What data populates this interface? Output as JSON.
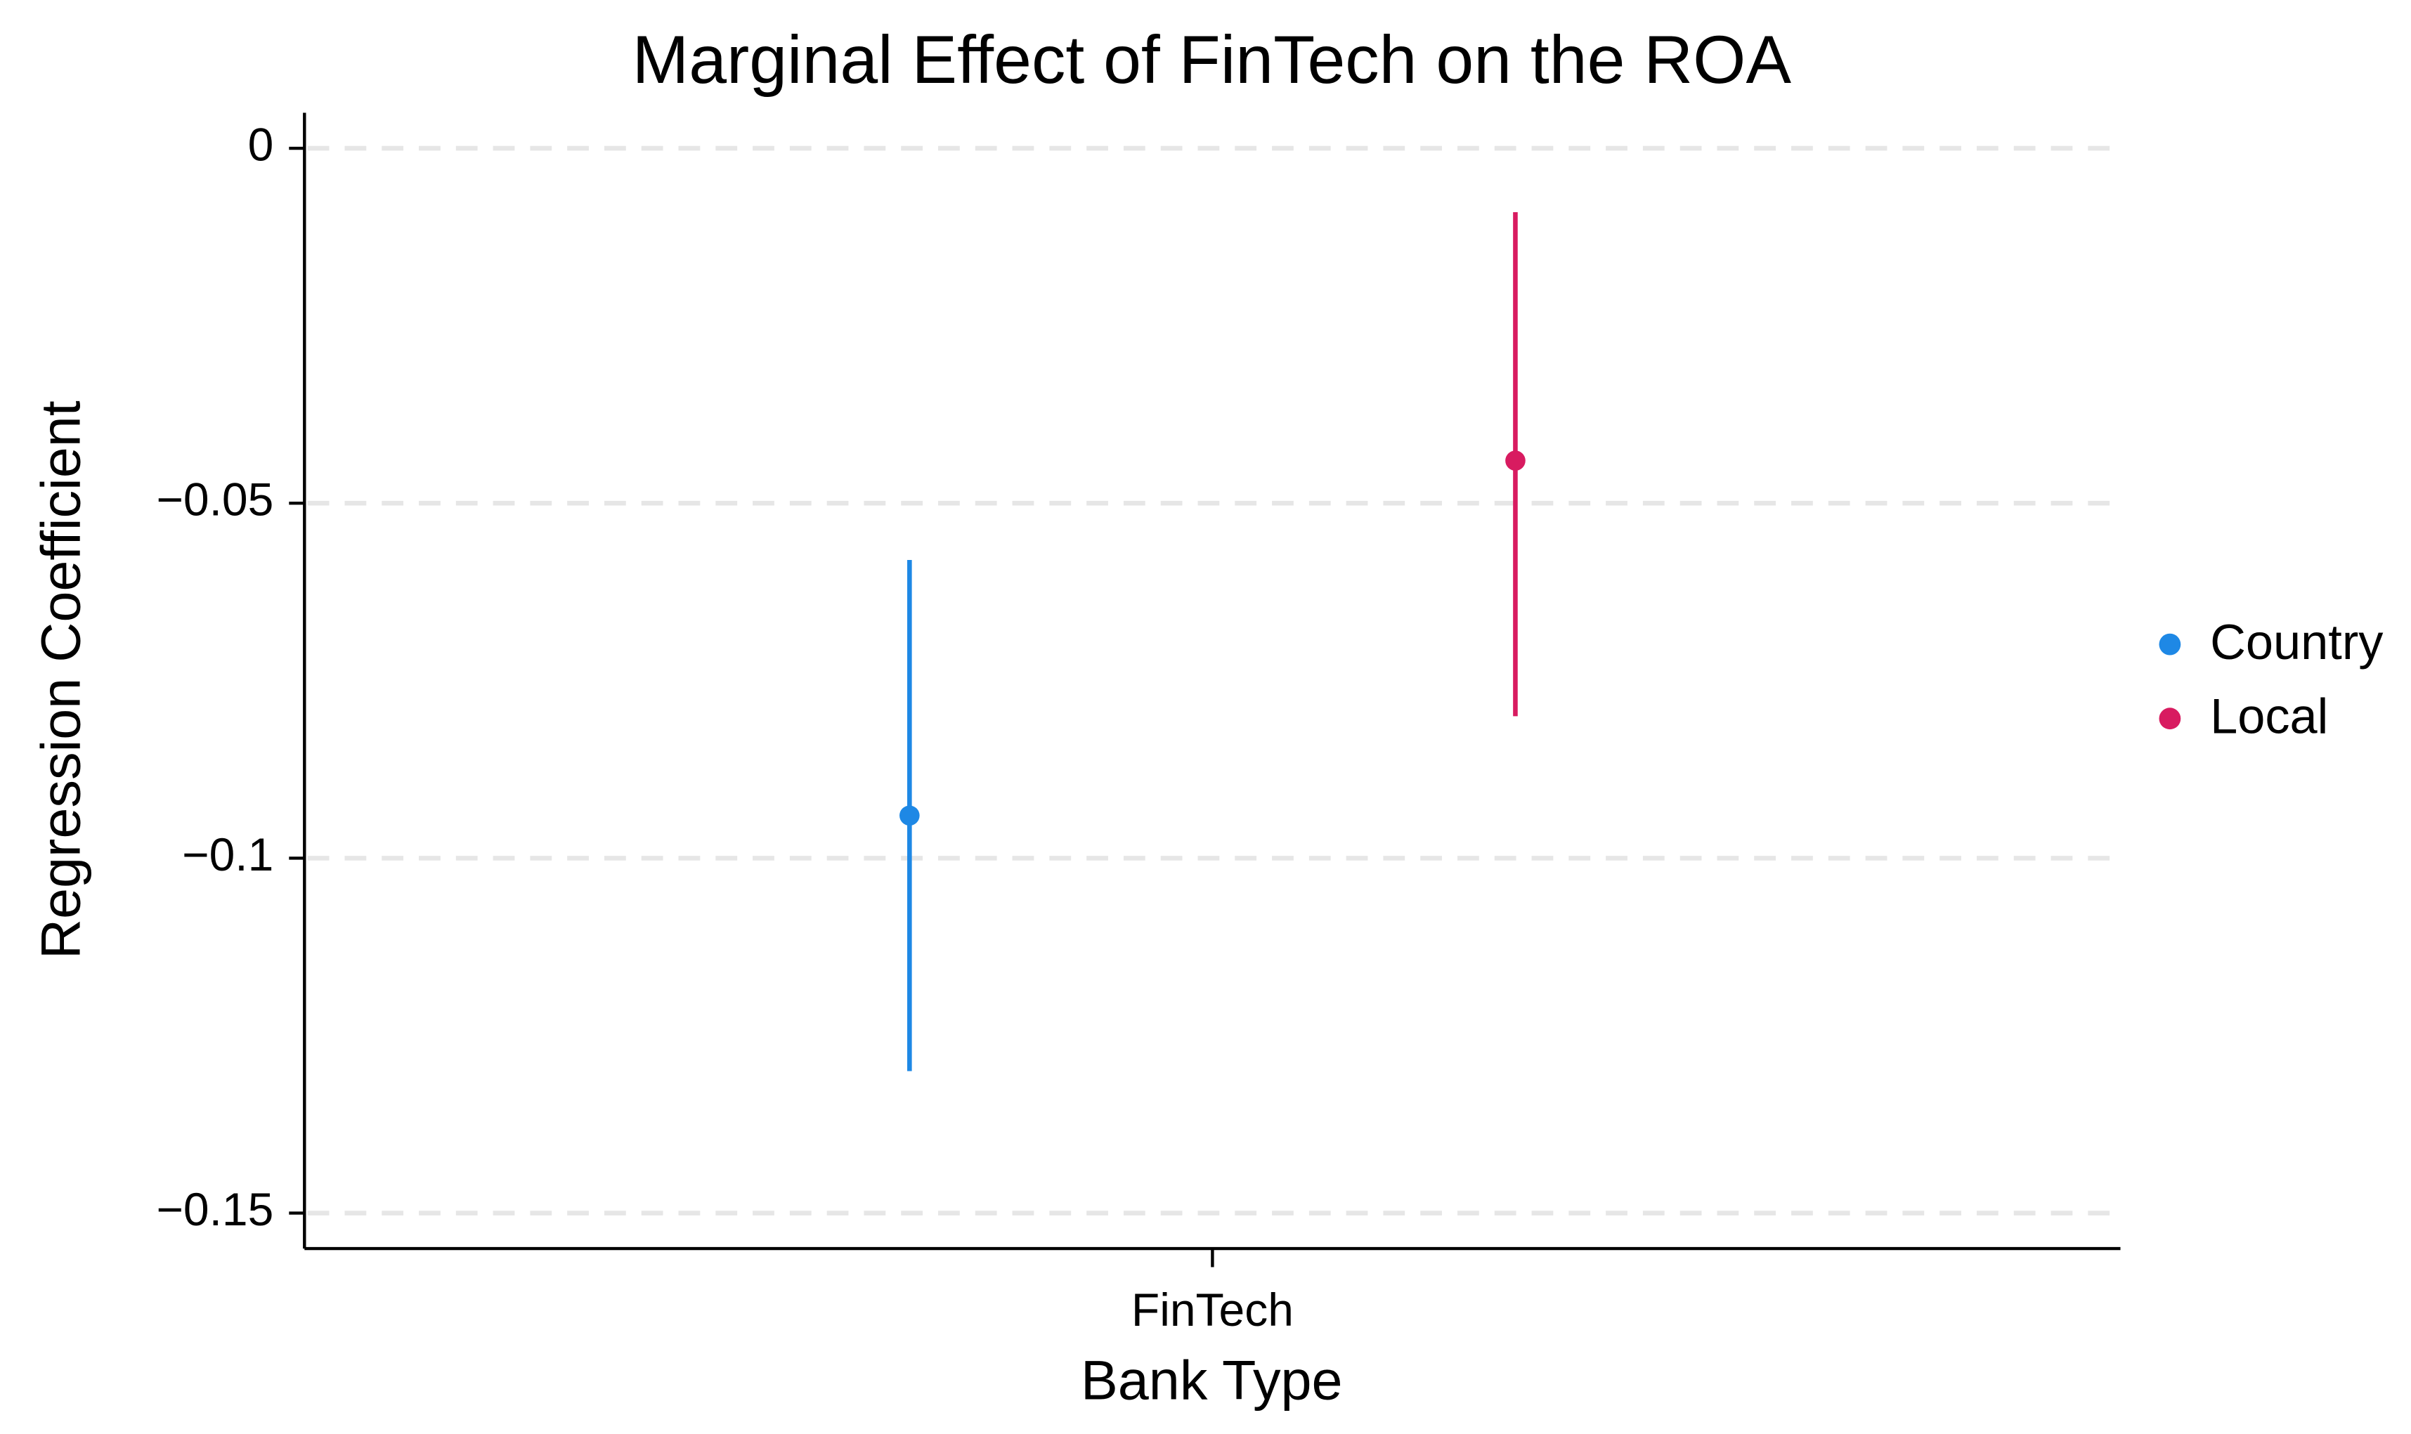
{
  "chart_data": {
    "type": "errorbar",
    "title": "Marginal Effect of FinTech on the ROA",
    "x_label": "Bank Type",
    "y_label": "Regression Coefficient",
    "categories": [
      "FinTech"
    ],
    "series": [
      {
        "name": "Country",
        "color": "#1e88e5",
        "values": [
          -0.094
        ],
        "lower": [
          -0.13
        ],
        "upper": [
          -0.058
        ]
      },
      {
        "name": "Local",
        "color": "#d81b60",
        "values": [
          -0.044
        ],
        "lower": [
          -0.08
        ],
        "upper": [
          -0.009
        ]
      }
    ],
    "ylim": [
      -0.155,
      0.005
    ],
    "yticks": [
      0,
      {
        "value": -0.05,
        "label": "−0.05"
      },
      {
        "value": -0.1,
        "label": "−0.1"
      },
      {
        "value": -0.15,
        "label": "−0.15"
      }
    ],
    "grid": true,
    "legend": "right"
  }
}
